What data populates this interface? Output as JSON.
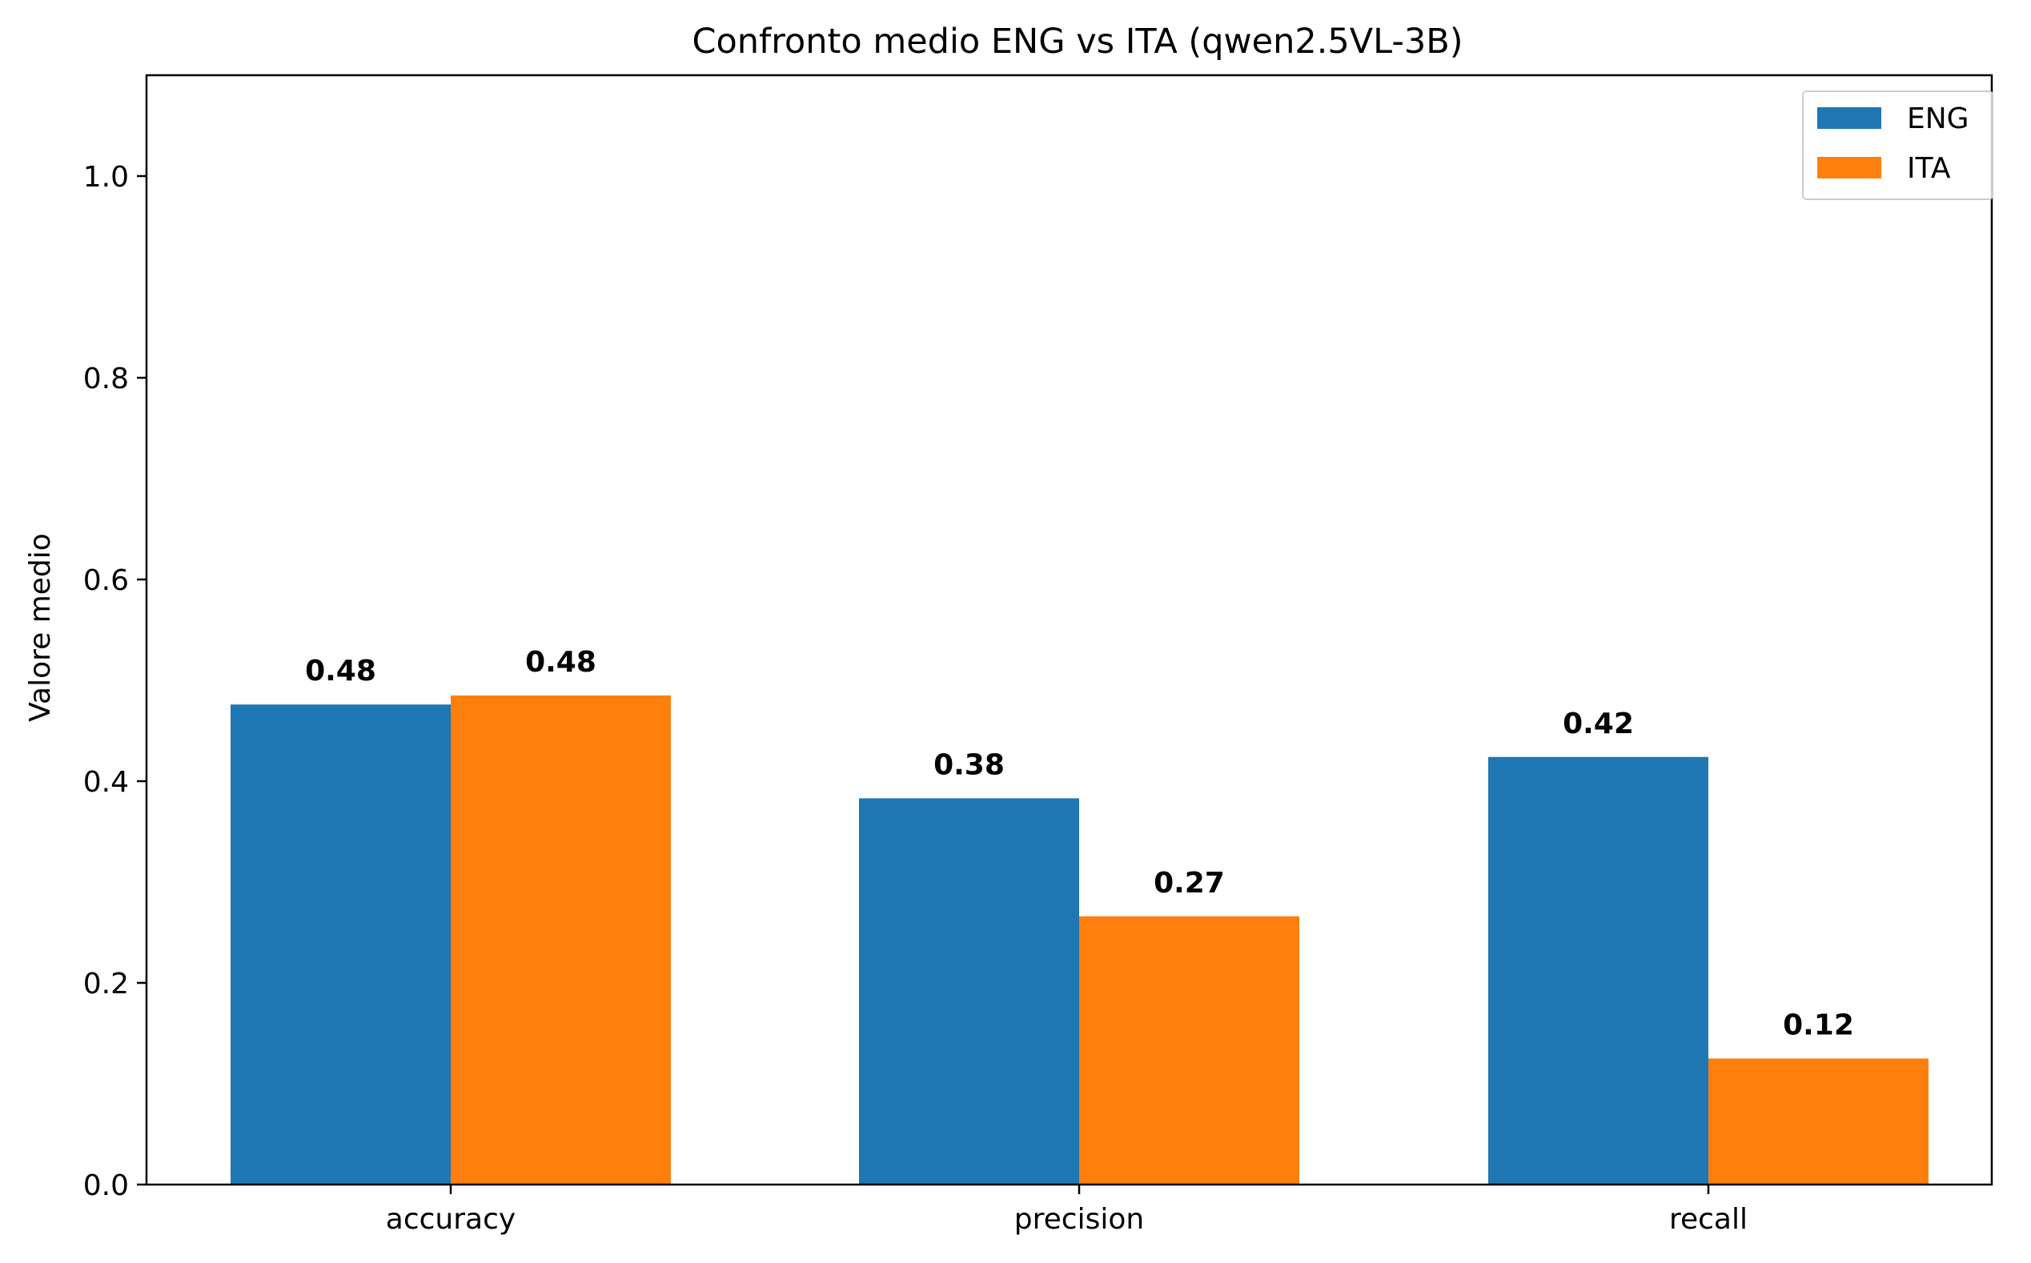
{
  "chart_data": {
    "type": "bar",
    "title": "Confronto medio ENG vs ITA (qwen2.5VL-3B)",
    "xlabel": "",
    "ylabel": "Valore medio",
    "ylim": [
      0,
      1.1
    ],
    "yticks": [
      "0.0",
      "0.2",
      "0.4",
      "0.6",
      "0.8",
      "1.0"
    ],
    "categories": [
      "accuracy",
      "precision",
      "recall"
    ],
    "series": [
      {
        "name": "ENG",
        "color": "#1f77b4",
        "values": [
          0.476,
          0.383,
          0.424
        ],
        "labels": [
          "0.48",
          "0.38",
          "0.42"
        ]
      },
      {
        "name": "ITA",
        "color": "#ff7f0e",
        "values": [
          0.485,
          0.266,
          0.125
        ],
        "labels": [
          "0.48",
          "0.27",
          "0.12"
        ]
      }
    ],
    "legend_position": "top-right",
    "grid": false
  }
}
